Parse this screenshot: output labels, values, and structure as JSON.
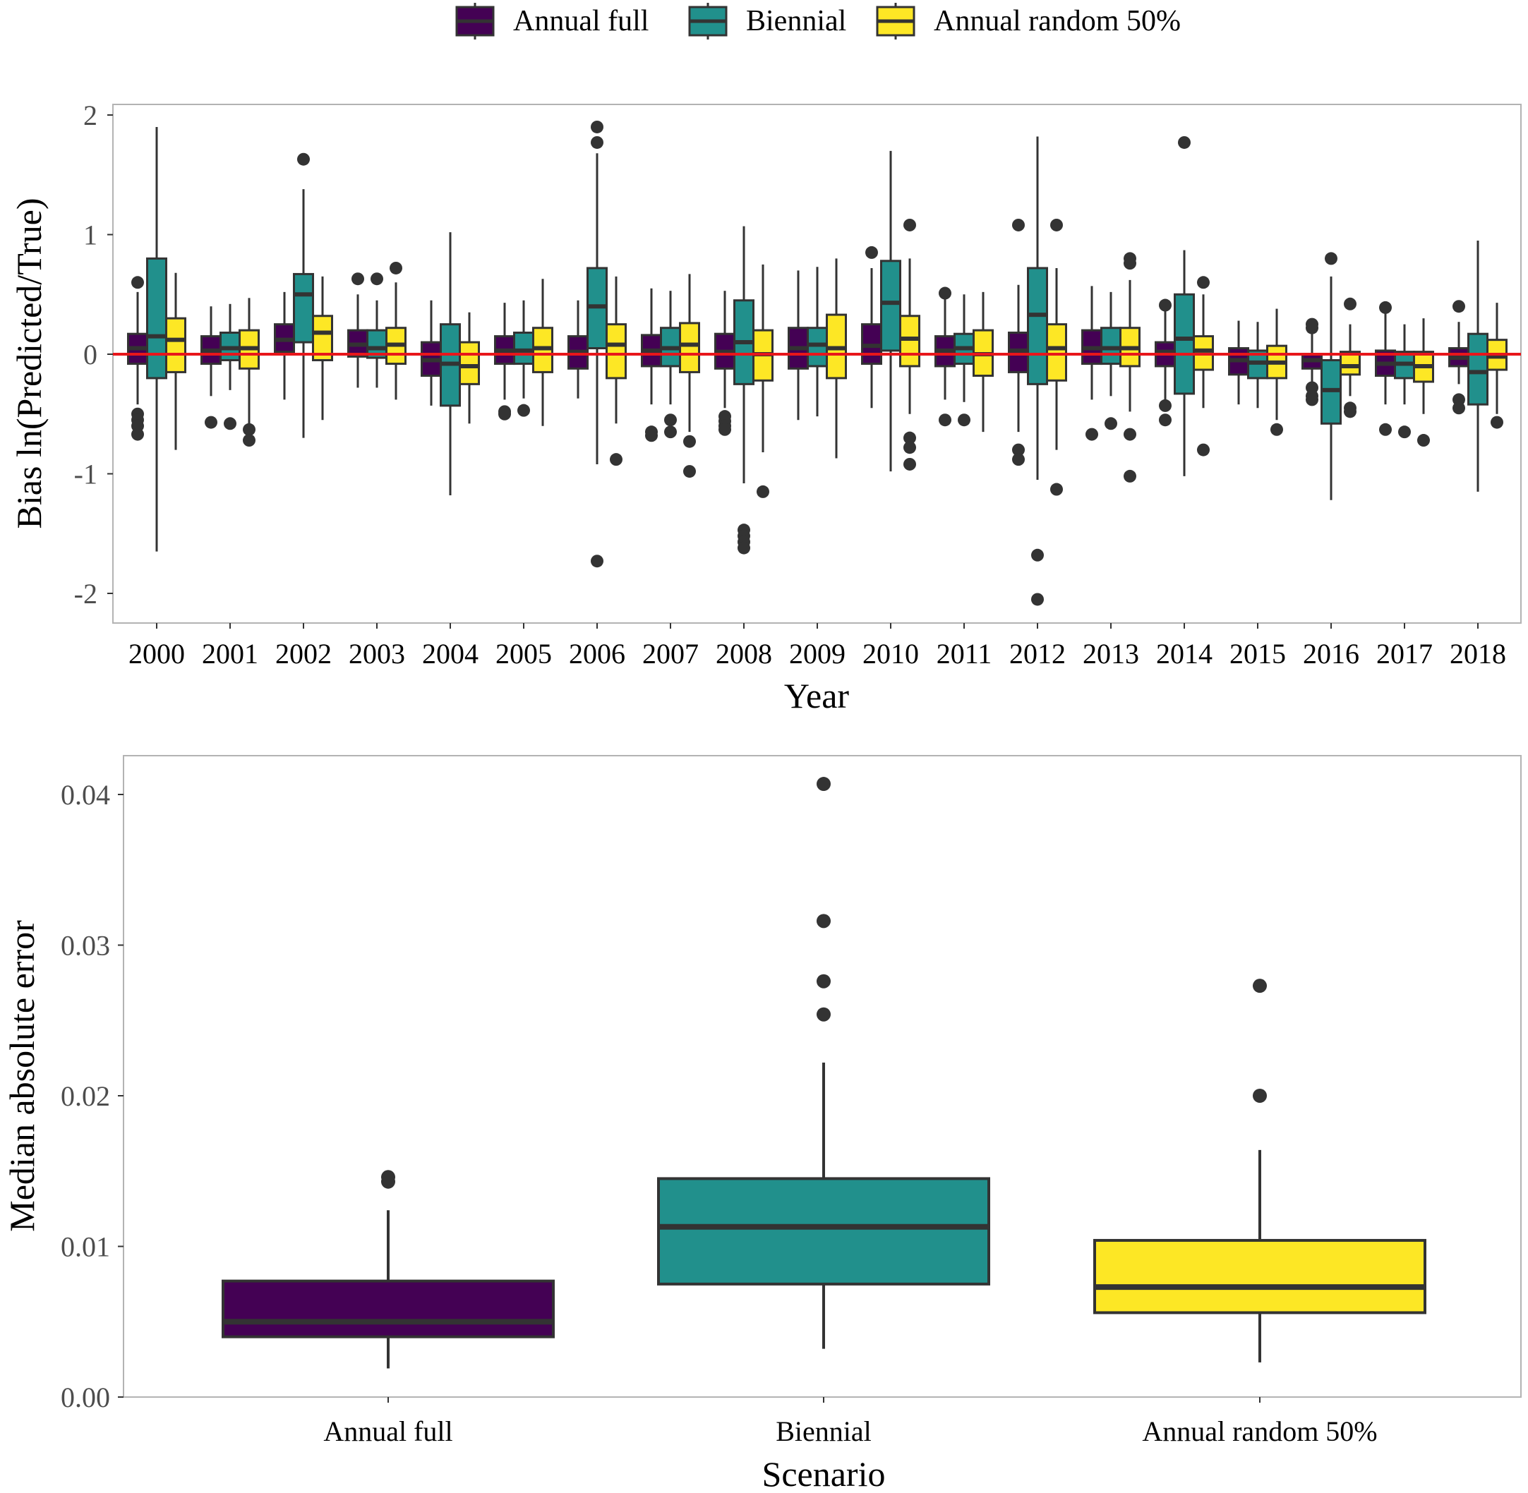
{
  "legend": {
    "items": [
      {
        "label": "Annual full",
        "color": "#440154"
      },
      {
        "label": "Biennial",
        "color": "#21908C"
      },
      {
        "label": "Annual random 50%",
        "color": "#FDE725"
      }
    ]
  },
  "colors": {
    "box_line": "#333333",
    "reference_line": "#E8161B",
    "frame": "#b3b3b3"
  },
  "chart_data": [
    {
      "type": "box",
      "name": "bias-by-year",
      "xlabel": "Year",
      "ylabel": "Bias ln(Predicted/True)",
      "ylim": [
        -2.25,
        2.05
      ],
      "yticks": [
        -2,
        -1,
        0,
        1,
        2
      ],
      "ytick_labels": [
        "-2",
        "-1",
        "0",
        "1",
        "2"
      ],
      "reference_line_y": 0,
      "categories": [
        "2000",
        "2001",
        "2002",
        "2003",
        "2004",
        "2005",
        "2006",
        "2007",
        "2008",
        "2009",
        "2010",
        "2011",
        "2012",
        "2013",
        "2014",
        "2015",
        "2016",
        "2017",
        "2018"
      ],
      "series": [
        {
          "name": "Annual full",
          "boxes": [
            {
              "q1": -0.08,
              "med": 0.05,
              "q3": 0.17,
              "wlo": -0.42,
              "whi": 0.52,
              "out": [
                0.6,
                -0.5,
                -0.55,
                -0.6,
                -0.67
              ]
            },
            {
              "q1": -0.08,
              "med": 0.03,
              "q3": 0.15,
              "wlo": -0.35,
              "whi": 0.4,
              "out": [
                -0.57
              ]
            },
            {
              "q1": 0.02,
              "med": 0.12,
              "q3": 0.25,
              "wlo": -0.38,
              "whi": 0.52,
              "out": []
            },
            {
              "q1": -0.02,
              "med": 0.08,
              "q3": 0.2,
              "wlo": -0.28,
              "whi": 0.5,
              "out": [
                0.63
              ]
            },
            {
              "q1": -0.18,
              "med": -0.05,
              "q3": 0.1,
              "wlo": -0.43,
              "whi": 0.45,
              "out": []
            },
            {
              "q1": -0.08,
              "med": 0.03,
              "q3": 0.15,
              "wlo": -0.38,
              "whi": 0.43,
              "out": [
                -0.48,
                -0.5
              ]
            },
            {
              "q1": -0.12,
              "med": 0.02,
              "q3": 0.15,
              "wlo": -0.37,
              "whi": 0.45,
              "out": []
            },
            {
              "q1": -0.1,
              "med": 0.03,
              "q3": 0.16,
              "wlo": -0.42,
              "whi": 0.55,
              "out": [
                -0.65,
                -0.68
              ]
            },
            {
              "q1": -0.12,
              "med": 0.02,
              "q3": 0.17,
              "wlo": -0.45,
              "whi": 0.53,
              "out": [
                -0.52,
                -0.56,
                -0.6,
                -0.63
              ]
            },
            {
              "q1": -0.12,
              "med": 0.05,
              "q3": 0.22,
              "wlo": -0.55,
              "whi": 0.7,
              "out": []
            },
            {
              "q1": -0.08,
              "med": 0.07,
              "q3": 0.25,
              "wlo": -0.45,
              "whi": 0.72,
              "out": [
                0.85
              ]
            },
            {
              "q1": -0.1,
              "med": 0.03,
              "q3": 0.15,
              "wlo": -0.38,
              "whi": 0.5,
              "out": [
                0.51,
                -0.55
              ]
            },
            {
              "q1": -0.15,
              "med": 0.03,
              "q3": 0.18,
              "wlo": -0.65,
              "whi": 0.58,
              "out": [
                1.08,
                -0.8,
                -0.88
              ]
            },
            {
              "q1": -0.08,
              "med": 0.05,
              "q3": 0.2,
              "wlo": -0.38,
              "whi": 0.57,
              "out": [
                -0.67
              ]
            },
            {
              "q1": -0.1,
              "med": 0.02,
              "q3": 0.1,
              "wlo": -0.38,
              "whi": 0.38,
              "out": [
                0.41,
                -0.43,
                -0.55
              ]
            },
            {
              "q1": -0.17,
              "med": -0.05,
              "q3": 0.05,
              "wlo": -0.42,
              "whi": 0.28,
              "out": []
            },
            {
              "q1": -0.12,
              "med": -0.05,
              "q3": 0,
              "wlo": -0.25,
              "whi": 0.2,
              "out": [
                0.22,
                0.25,
                -0.28,
                -0.35,
                -0.38
              ]
            },
            {
              "q1": -0.18,
              "med": -0.08,
              "q3": 0.03,
              "wlo": -0.42,
              "whi": 0.35,
              "out": [
                0.39,
                -0.63
              ]
            },
            {
              "q1": -0.1,
              "med": -0.03,
              "q3": 0.05,
              "wlo": -0.25,
              "whi": 0.27,
              "out": [
                0.4,
                -0.38,
                -0.45
              ]
            }
          ]
        },
        {
          "name": "Biennial",
          "boxes": [
            {
              "q1": -0.2,
              "med": 0.15,
              "q3": 0.8,
              "wlo": -1.65,
              "whi": 1.9,
              "out": []
            },
            {
              "q1": -0.05,
              "med": 0.05,
              "q3": 0.18,
              "wlo": -0.3,
              "whi": 0.42,
              "out": [
                -0.58
              ]
            },
            {
              "q1": 0.1,
              "med": 0.5,
              "q3": 0.67,
              "wlo": -0.7,
              "whi": 1.38,
              "out": [
                1.63
              ]
            },
            {
              "q1": -0.03,
              "med": 0.05,
              "q3": 0.2,
              "wlo": -0.28,
              "whi": 0.45,
              "out": [
                0.63
              ]
            },
            {
              "q1": -0.43,
              "med": -0.08,
              "q3": 0.25,
              "wlo": -1.18,
              "whi": 1.02,
              "out": []
            },
            {
              "q1": -0.08,
              "med": 0.03,
              "q3": 0.18,
              "wlo": -0.37,
              "whi": 0.45,
              "out": [
                -0.47
              ]
            },
            {
              "q1": 0.05,
              "med": 0.4,
              "q3": 0.72,
              "wlo": -0.92,
              "whi": 1.68,
              "out": [
                1.9,
                1.77,
                -1.73
              ]
            },
            {
              "q1": -0.1,
              "med": 0.05,
              "q3": 0.22,
              "wlo": -0.42,
              "whi": 0.53,
              "out": [
                -0.55,
                -0.65
              ]
            },
            {
              "q1": -0.25,
              "med": 0.1,
              "q3": 0.45,
              "wlo": -1.08,
              "whi": 1.07,
              "out": [
                -1.47,
                -1.52,
                -1.57,
                -1.62
              ]
            },
            {
              "q1": -0.1,
              "med": 0.08,
              "q3": 0.22,
              "wlo": -0.52,
              "whi": 0.73,
              "out": []
            },
            {
              "q1": 0.03,
              "med": 0.43,
              "q3": 0.78,
              "wlo": -0.98,
              "whi": 1.7,
              "out": []
            },
            {
              "q1": -0.08,
              "med": 0.05,
              "q3": 0.17,
              "wlo": -0.4,
              "whi": 0.5,
              "out": [
                -0.55
              ]
            },
            {
              "q1": -0.25,
              "med": 0.33,
              "q3": 0.72,
              "wlo": -1.05,
              "whi": 1.82,
              "out": [
                -1.68,
                -2.05
              ]
            },
            {
              "q1": -0.08,
              "med": 0.05,
              "q3": 0.22,
              "wlo": -0.35,
              "whi": 0.52,
              "out": [
                -0.58
              ]
            },
            {
              "q1": -0.33,
              "med": 0.13,
              "q3": 0.5,
              "wlo": -1.02,
              "whi": 0.87,
              "out": [
                1.77
              ]
            },
            {
              "q1": -0.2,
              "med": -0.07,
              "q3": 0.03,
              "wlo": -0.45,
              "whi": 0.27,
              "out": []
            },
            {
              "q1": -0.58,
              "med": -0.3,
              "q3": -0.05,
              "wlo": -1.22,
              "whi": 0.65,
              "out": [
                0.8
              ]
            },
            {
              "q1": -0.2,
              "med": -0.08,
              "q3": 0.02,
              "wlo": -0.42,
              "whi": 0.25,
              "out": [
                -0.65
              ]
            },
            {
              "q1": -0.42,
              "med": -0.15,
              "q3": 0.17,
              "wlo": -1.15,
              "whi": 0.95,
              "out": []
            }
          ]
        },
        {
          "name": "Annual random 50%",
          "boxes": [
            {
              "q1": -0.15,
              "med": 0.12,
              "q3": 0.3,
              "wlo": -0.8,
              "whi": 0.68,
              "out": []
            },
            {
              "q1": -0.12,
              "med": 0.05,
              "q3": 0.2,
              "wlo": -0.58,
              "whi": 0.47,
              "out": [
                -0.63,
                -0.72
              ]
            },
            {
              "q1": -0.05,
              "med": 0.18,
              "q3": 0.32,
              "wlo": -0.55,
              "whi": 0.65,
              "out": []
            },
            {
              "q1": -0.08,
              "med": 0.08,
              "q3": 0.22,
              "wlo": -0.38,
              "whi": 0.6,
              "out": [
                0.72
              ]
            },
            {
              "q1": -0.25,
              "med": -0.1,
              "q3": 0.1,
              "wlo": -0.58,
              "whi": 0.35,
              "out": []
            },
            {
              "q1": -0.15,
              "med": 0.05,
              "q3": 0.22,
              "wlo": -0.6,
              "whi": 0.63,
              "out": []
            },
            {
              "q1": -0.2,
              "med": 0.08,
              "q3": 0.25,
              "wlo": -0.58,
              "whi": 0.65,
              "out": [
                -0.88
              ]
            },
            {
              "q1": -0.15,
              "med": 0.08,
              "q3": 0.26,
              "wlo": -0.65,
              "whi": 0.67,
              "out": [
                -0.73,
                -0.98
              ]
            },
            {
              "q1": -0.22,
              "med": 0,
              "q3": 0.2,
              "wlo": -0.82,
              "whi": 0.75,
              "out": [
                -1.15
              ]
            },
            {
              "q1": -0.2,
              "med": 0.05,
              "q3": 0.33,
              "wlo": -0.87,
              "whi": 0.8,
              "out": []
            },
            {
              "q1": -0.1,
              "med": 0.13,
              "q3": 0.32,
              "wlo": -0.5,
              "whi": 0.8,
              "out": [
                1.08,
                -0.7,
                -0.78,
                -0.92
              ]
            },
            {
              "q1": -0.18,
              "med": 0,
              "q3": 0.2,
              "wlo": -0.65,
              "whi": 0.52,
              "out": []
            },
            {
              "q1": -0.22,
              "med": 0.05,
              "q3": 0.25,
              "wlo": -0.8,
              "whi": 0.72,
              "out": [
                1.08,
                -1.13
              ]
            },
            {
              "q1": -0.1,
              "med": 0.05,
              "q3": 0.22,
              "wlo": -0.48,
              "whi": 0.62,
              "out": [
                0.76,
                0.8,
                -0.67,
                -1.02
              ]
            },
            {
              "q1": -0.13,
              "med": 0.03,
              "q3": 0.15,
              "wlo": -0.45,
              "whi": 0.5,
              "out": [
                0.6,
                -0.8
              ]
            },
            {
              "q1": -0.2,
              "med": -0.07,
              "q3": 0.07,
              "wlo": -0.55,
              "whi": 0.38,
              "out": [
                -0.63
              ]
            },
            {
              "q1": -0.17,
              "med": -0.1,
              "q3": 0.02,
              "wlo": -0.35,
              "whi": 0.25,
              "out": [
                0.42,
                -0.45,
                -0.48
              ]
            },
            {
              "q1": -0.23,
              "med": -0.1,
              "q3": 0.02,
              "wlo": -0.5,
              "whi": 0.3,
              "out": [
                -0.72
              ]
            },
            {
              "q1": -0.13,
              "med": -0.02,
              "q3": 0.12,
              "wlo": -0.5,
              "whi": 0.43,
              "out": [
                -0.57
              ]
            }
          ]
        }
      ]
    },
    {
      "type": "box",
      "name": "median-absolute-error",
      "xlabel": "Scenario",
      "ylabel": "Median absolute error",
      "ylim": [
        0,
        0.0425
      ],
      "yticks": [
        0,
        0.01,
        0.02,
        0.03,
        0.04
      ],
      "ytick_labels": [
        "0.00",
        "0.01",
        "0.02",
        "0.03",
        "0.04"
      ],
      "categories": [
        "Annual full",
        "Biennial",
        "Annual random 50%"
      ],
      "boxes": [
        {
          "q1": 0.004,
          "med": 0.005,
          "q3": 0.0077,
          "wlo": 0.0019,
          "whi": 0.0124,
          "out": [
            0.0143,
            0.0146
          ],
          "color": "#440154"
        },
        {
          "q1": 0.0075,
          "med": 0.0113,
          "q3": 0.0145,
          "wlo": 0.0032,
          "whi": 0.0222,
          "out": [
            0.0407,
            0.0316,
            0.0276,
            0.0254
          ],
          "color": "#21908C"
        },
        {
          "q1": 0.0056,
          "med": 0.0073,
          "q3": 0.0104,
          "wlo": 0.0023,
          "whi": 0.0164,
          "out": [
            0.0273,
            0.02
          ],
          "color": "#FDE725"
        }
      ]
    }
  ]
}
